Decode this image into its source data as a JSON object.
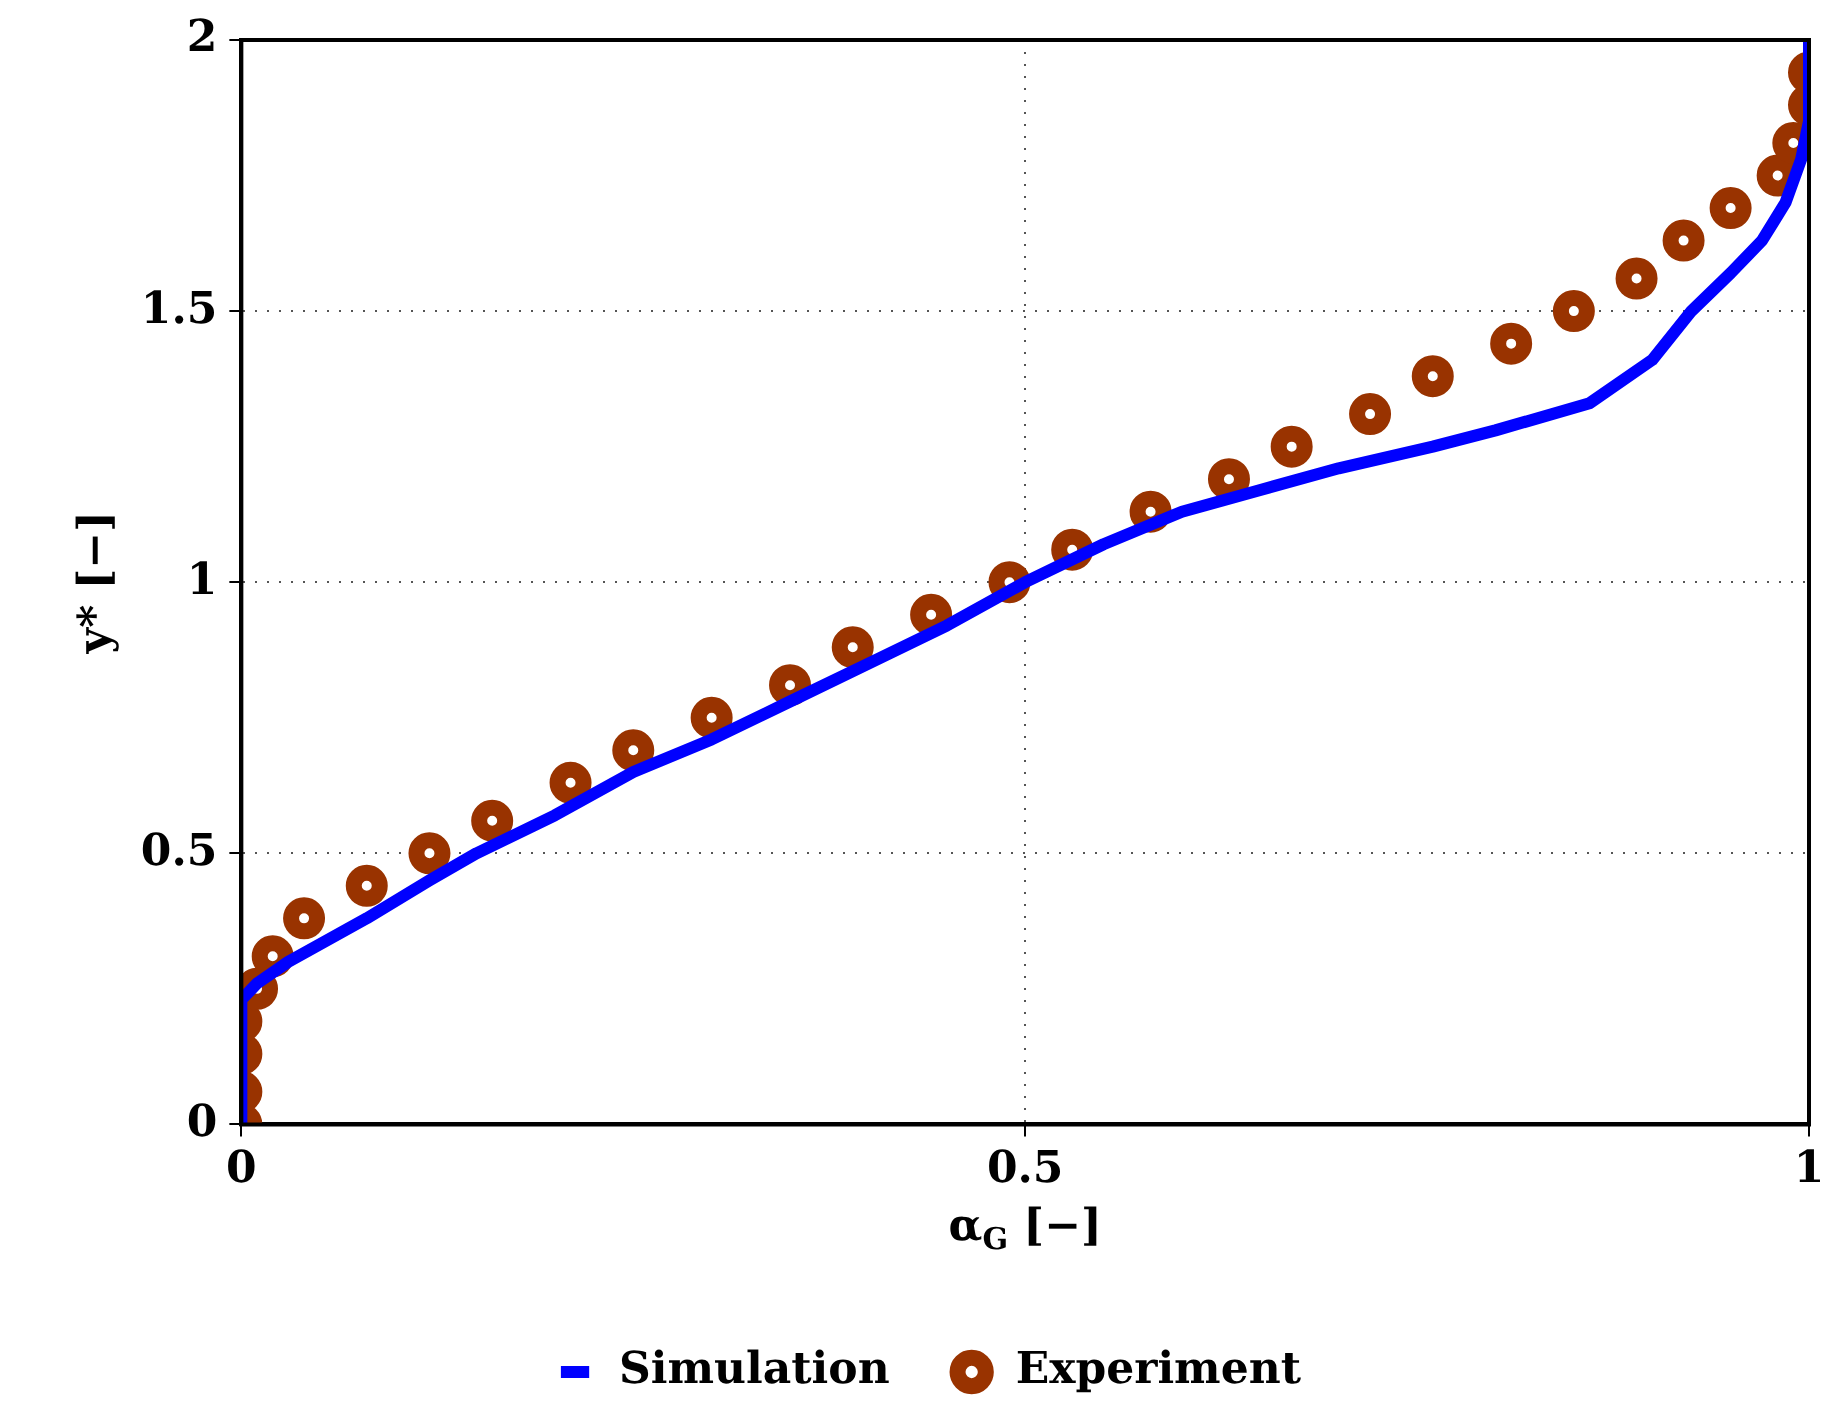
{
  "chart_data": {
    "type": "scatter",
    "xlabel": "α$_{G}$ [−]",
    "ylabel": "y* [−]",
    "xlim": [
      0,
      1
    ],
    "xticks": [
      0,
      0.5,
      1
    ],
    "ylim": [
      0,
      2
    ],
    "yticks": [
      0,
      0.5,
      1,
      1.5,
      2
    ],
    "grid": true,
    "legend": "bottom",
    "series": [
      {
        "name": "Experiment",
        "type": "scatter",
        "marker": "circle",
        "color": "#993300",
        "x": [
          0,
          0,
          0,
          0,
          0.01,
          0.02,
          0.04,
          0.08,
          0.12,
          0.16,
          0.21,
          0.25,
          0.3,
          0.35,
          0.39,
          0.44,
          0.49,
          0.53,
          0.58,
          0.63,
          0.67,
          0.72,
          0.76,
          0.81,
          0.85,
          0.89,
          0.92,
          0.95,
          0.98,
          0.99,
          1,
          1
        ],
        "values": [
          0,
          0.06,
          0.13,
          0.19,
          0.25,
          0.31,
          0.38,
          0.44,
          0.5,
          0.56,
          0.63,
          0.69,
          0.75,
          0.81,
          0.88,
          0.94,
          1,
          1.06,
          1.13,
          1.19,
          1.25,
          1.31,
          1.38,
          1.44,
          1.5,
          1.56,
          1.63,
          1.69,
          1.75,
          1.81,
          1.88,
          1.94
        ]
      },
      {
        "name": "Simulation",
        "type": "line",
        "marker": "none",
        "line_style": "solid",
        "color": "#0000ff",
        "x": [
          0,
          0,
          0.01,
          0.03,
          0.08,
          0.12,
          0.15,
          0.2,
          0.25,
          0.3,
          0.35,
          0.4,
          0.45,
          0.5,
          0.55,
          0.6,
          0.65,
          0.7,
          0.76,
          0.8,
          0.86,
          0.9,
          0.925,
          0.95,
          0.97,
          0.985,
          0.995,
          1,
          1
        ],
        "values": [
          0,
          0.23,
          0.26,
          0.3,
          0.38,
          0.45,
          0.5,
          0.57,
          0.65,
          0.71,
          0.78,
          0.85,
          0.92,
          1,
          1.07,
          1.13,
          1.17,
          1.21,
          1.25,
          1.28,
          1.33,
          1.41,
          1.5,
          1.57,
          1.63,
          1.7,
          1.78,
          1.85,
          2
        ]
      }
    ]
  }
}
